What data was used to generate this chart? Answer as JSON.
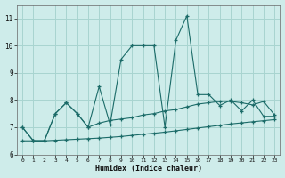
{
  "xlabel": "Humidex (Indice chaleur)",
  "background_color": "#ceecea",
  "grid_color": "#a8d4d0",
  "line_color": "#1b6b68",
  "xlim": [
    -0.5,
    23.5
  ],
  "ylim": [
    6.0,
    11.5
  ],
  "yticks": [
    6,
    7,
    8,
    9,
    10,
    11
  ],
  "xticks": [
    0,
    1,
    2,
    3,
    4,
    5,
    6,
    7,
    8,
    9,
    10,
    11,
    12,
    13,
    14,
    15,
    16,
    17,
    18,
    19,
    20,
    21,
    22,
    23
  ],
  "curve1": [
    7.0,
    6.5,
    6.5,
    7.5,
    7.9,
    7.5,
    7.0,
    8.5,
    7.1,
    9.5,
    10.0,
    10.0,
    10.0,
    7.0,
    10.2,
    11.1,
    8.2,
    8.2,
    7.8,
    8.0,
    7.6,
    8.0,
    7.4,
    7.4
  ],
  "curve2": [
    7.0,
    6.5,
    6.5,
    7.5,
    7.9,
    7.5,
    7.0,
    7.15,
    7.25,
    7.3,
    7.35,
    7.45,
    7.5,
    7.6,
    7.65,
    7.75,
    7.85,
    7.9,
    7.95,
    7.95,
    7.9,
    7.82,
    7.95,
    7.45
  ],
  "curve3": [
    6.5,
    6.5,
    6.5,
    6.52,
    6.54,
    6.56,
    6.58,
    6.6,
    6.63,
    6.66,
    6.7,
    6.74,
    6.78,
    6.82,
    6.87,
    6.92,
    6.97,
    7.02,
    7.07,
    7.12,
    7.16,
    7.2,
    7.24,
    7.28
  ]
}
